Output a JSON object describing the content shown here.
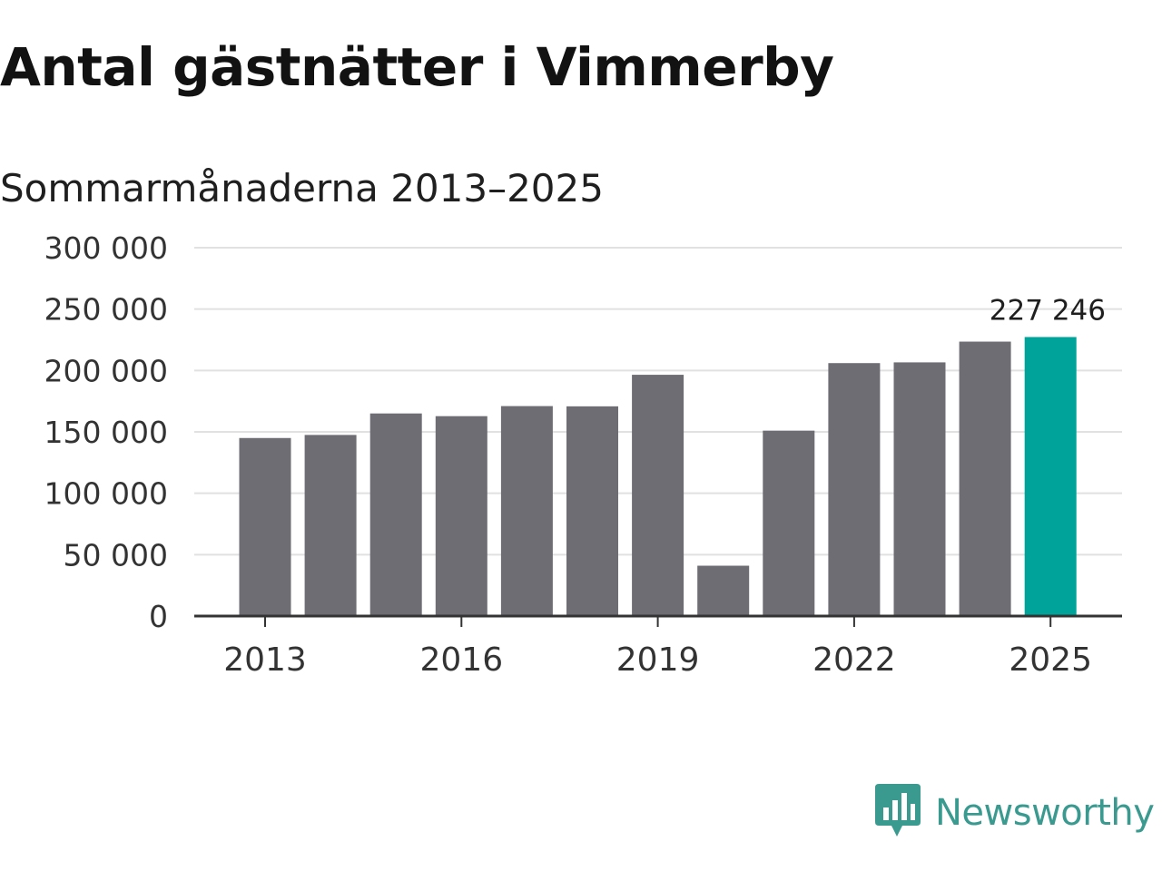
{
  "title": "Antal gästnätter i Vimmerby",
  "subtitle": "Sommarmånaderna 2013–2025",
  "brand": {
    "name": "Newsworthy",
    "logo_icon": "bar-chart-speech-bubble-icon",
    "color": "#3a9a8f"
  },
  "colors": {
    "bar": "#6e6d73",
    "highlight": "#00a39a",
    "grid": "#e1e1e1",
    "axis": "#333333"
  },
  "chart_data": {
    "type": "bar",
    "title": "Antal gästnätter i Vimmerby",
    "subtitle": "Sommarmånaderna 2013–2025",
    "xlabel": "",
    "ylabel": "",
    "categories": [
      "2013",
      "2014",
      "2015",
      "2016",
      "2017",
      "2018",
      "2019",
      "2020",
      "2021",
      "2022",
      "2023",
      "2024",
      "2025"
    ],
    "values": [
      145000,
      147500,
      165000,
      162800,
      171000,
      170800,
      196500,
      41000,
      151000,
      206000,
      206600,
      223500,
      227246
    ],
    "highlight_index": 12,
    "ylim": [
      0,
      300000
    ],
    "yticks": [
      0,
      50000,
      100000,
      150000,
      200000,
      250000,
      300000
    ],
    "ytick_labels": [
      "0",
      "50 000",
      "100 000",
      "150 000",
      "200 000",
      "250 000",
      "300 000"
    ],
    "xtick_labels": [
      "2013",
      "2016",
      "2019",
      "2022",
      "2025"
    ],
    "xtick_categories": [
      "2013",
      "2016",
      "2019",
      "2022",
      "2025"
    ],
    "data_labels": [
      {
        "category": "2025",
        "text": "227 246"
      }
    ],
    "grid": true,
    "legend": "none"
  }
}
